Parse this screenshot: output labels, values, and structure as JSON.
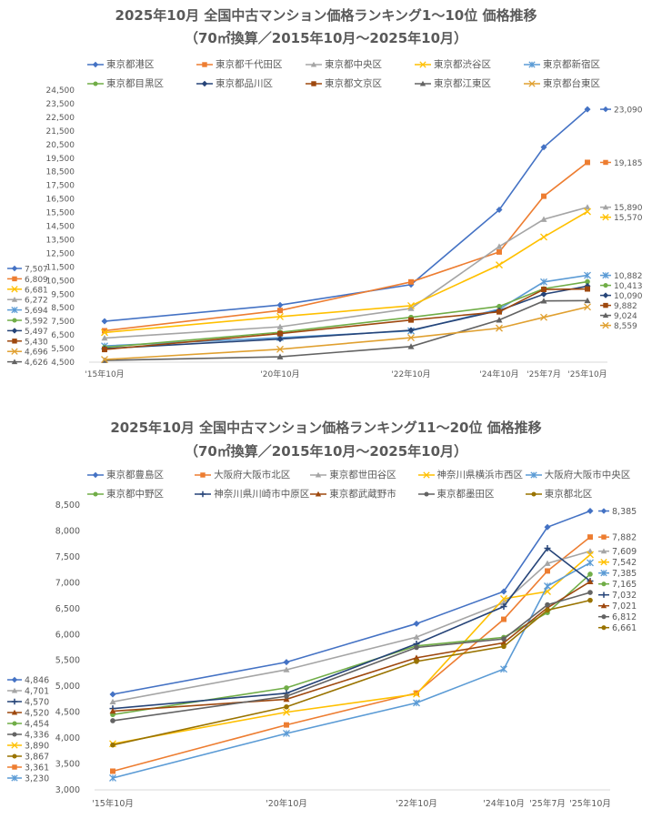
{
  "chart_data": [
    {
      "type": "line",
      "title": "2025年10月 全国中古マンション価格ランキング1～10位 価格推移",
      "subtitle": "（70㎡換算／2015年10月～2025年10月）",
      "categories": [
        "'15年10月",
        "'20年10月",
        "'22年10月",
        "'24年10月",
        "'25年7月",
        "'25年10月"
      ],
      "ylim": [
        4500,
        24500
      ],
      "ystep": 1000,
      "legend_position": "top",
      "series": [
        {
          "name": "東京都港区",
          "color": "#4472C4",
          "marker": "diamond",
          "values": [
            7507,
            8700,
            10200,
            15700,
            20300,
            23090
          ],
          "start_label": "7,507",
          "end_label": "23,090"
        },
        {
          "name": "東京都千代田区",
          "color": "#ED7D31",
          "marker": "square",
          "values": [
            6809,
            8300,
            10400,
            12600,
            16700,
            19185
          ],
          "start_label": "6,809",
          "end_label": "19,185"
        },
        {
          "name": "東京都中央区",
          "color": "#A5A5A5",
          "marker": "triangle",
          "values": [
            6272,
            7100,
            8450,
            13000,
            15000,
            15890
          ],
          "start_label": "6,272",
          "end_label": "15,890"
        },
        {
          "name": "東京都渋谷区",
          "color": "#FFC000",
          "marker": "x",
          "values": [
            6681,
            7850,
            8650,
            11650,
            13700,
            15570
          ],
          "start_label": "6,681",
          "end_label": "15,570"
        },
        {
          "name": "東京都新宿区",
          "color": "#5B9BD5",
          "marker": "star",
          "values": [
            5694,
            6300,
            6800,
            8400,
            10400,
            10882
          ],
          "start_label": "5,694",
          "end_label": "10,882"
        },
        {
          "name": "東京都目黒区",
          "color": "#70AD47",
          "marker": "circle",
          "values": [
            5592,
            6700,
            7800,
            8600,
            9900,
            10413
          ],
          "start_label": "5,592",
          "end_label": "10,413"
        },
        {
          "name": "東京都品川区",
          "color": "#264478",
          "marker": "diamond",
          "values": [
            5497,
            6200,
            6850,
            8300,
            9500,
            10090
          ],
          "start_label": "5,497",
          "end_label": "10,090"
        },
        {
          "name": "東京都文京区",
          "color": "#9E480E",
          "marker": "square",
          "values": [
            5430,
            6600,
            7600,
            8200,
            9850,
            9882
          ],
          "start_label": "5,430",
          "end_label": "9,882"
        },
        {
          "name": "東京都江東区",
          "color": "#636363",
          "marker": "triangle",
          "values": [
            4626,
            4900,
            5650,
            7600,
            9000,
            9024
          ],
          "start_label": "4,626",
          "end_label": "9,024"
        },
        {
          "name": "東京都台東区",
          "color": "#E0A030",
          "marker": "x",
          "values": [
            4696,
            5450,
            6300,
            7000,
            7800,
            8559
          ],
          "start_label": "4,696",
          "end_label": "8,559"
        }
      ],
      "left_label_order": [
        0,
        1,
        3,
        2,
        4,
        5,
        6,
        7,
        9,
        8
      ]
    },
    {
      "type": "line",
      "title": "2025年10月 全国中古マンション価格ランキング11～20位 価格推移",
      "subtitle": "（70㎡換算／2015年10月～2025年10月）",
      "categories": [
        "'15年10月",
        "'20年10月",
        "'22年10月",
        "'24年10月",
        "'25年7月",
        "'25年10月"
      ],
      "ylim": [
        3000,
        8500
      ],
      "ystep": 500,
      "legend_position": "top",
      "series": [
        {
          "name": "東京都豊島区",
          "color": "#4472C4",
          "marker": "diamond",
          "values": [
            4846,
            5467,
            6210,
            6831,
            8073,
            8385
          ],
          "start_label": "4,846",
          "end_label": "8,385"
        },
        {
          "name": "大阪府大阪市北区",
          "color": "#ED7D31",
          "marker": "square",
          "values": [
            3361,
            4254,
            4870,
            6294,
            7227,
            7882
          ],
          "start_label": "3,361",
          "end_label": "7,882"
        },
        {
          "name": "東京都世田谷区",
          "color": "#A5A5A5",
          "marker": "triangle",
          "values": [
            4701,
            5320,
            5950,
            6615,
            7373,
            7609
          ],
          "start_label": "4,701",
          "end_label": "7,609"
        },
        {
          "name": "神奈川県横浜市西区",
          "color": "#FFC000",
          "marker": "x",
          "values": [
            3890,
            4500,
            4850,
            6691,
            6831,
            7542
          ],
          "start_label": "3,890",
          "end_label": "7,542"
        },
        {
          "name": "大阪府大阪市中央区",
          "color": "#5B9BD5",
          "marker": "star",
          "values": [
            3230,
            4090,
            4680,
            5332,
            6936,
            7385
          ],
          "start_label": "3,230",
          "end_label": "7,385"
        },
        {
          "name": "東京都中野区",
          "color": "#70AD47",
          "marker": "circle",
          "values": [
            4454,
            4970,
            5780,
            5945,
            6423,
            7165
          ],
          "start_label": "4,454",
          "end_label": "7,165"
        },
        {
          "name": "神奈川県川崎市中原区",
          "color": "#264478",
          "marker": "plus",
          "values": [
            4570,
            4866,
            5820,
            6540,
            7665,
            7032
          ],
          "start_label": "4,570",
          "end_label": "7,032"
        },
        {
          "name": "東京都武蔵野市",
          "color": "#9E480E",
          "marker": "triangle",
          "values": [
            4520,
            4750,
            5550,
            5840,
            6516,
            7021
          ],
          "start_label": "4,520",
          "end_label": "7,021"
        },
        {
          "name": "東京都墨田区",
          "color": "#636363",
          "marker": "circle",
          "values": [
            4336,
            4808,
            5750,
            5915,
            6574,
            6812
          ],
          "start_label": "4,336",
          "end_label": "6,812"
        },
        {
          "name": "東京都北区",
          "color": "#997300",
          "marker": "circle",
          "values": [
            3867,
            4603,
            5480,
            5770,
            6470,
            6661
          ],
          "start_label": "3,867",
          "end_label": "6,661"
        }
      ],
      "left_label_order": [
        0,
        2,
        6,
        7,
        5,
        8,
        3,
        9,
        1,
        4
      ]
    }
  ]
}
